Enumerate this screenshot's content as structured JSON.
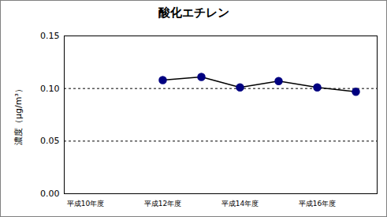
{
  "chart_data": {
    "type": "line",
    "title": "酸化エチレン",
    "y_label": "濃度（μg/m³）",
    "categories": [
      "平成10年度",
      null,
      "平成12年度",
      null,
      "平成14年度",
      null,
      "平成16年度",
      null
    ],
    "values": [
      null,
      null,
      0.108,
      0.111,
      0.101,
      0.107,
      0.101,
      0.097
    ],
    "color": "#000080",
    "marker": "circle",
    "ylim": [
      0,
      0.15
    ],
    "yticks": [
      {
        "value": 0,
        "label": "0.00"
      },
      {
        "value": 0.05,
        "label": "0.05"
      },
      {
        "value": 0.1,
        "label": "0.10"
      },
      {
        "value": 0.15,
        "label": "0.15"
      }
    ],
    "grid": true
  }
}
